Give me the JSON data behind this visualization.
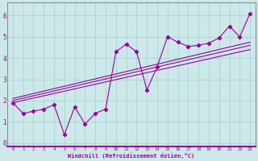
{
  "title": "",
  "xlabel": "Windchill (Refroidissement éolien,°C)",
  "ylabel": "",
  "xlim": [
    -0.5,
    23.5
  ],
  "ylim": [
    -0.15,
    6.6
  ],
  "xticks": [
    0,
    1,
    2,
    3,
    4,
    5,
    6,
    7,
    8,
    9,
    10,
    11,
    12,
    13,
    14,
    15,
    16,
    17,
    18,
    19,
    20,
    21,
    22,
    23
  ],
  "yticks": [
    0,
    1,
    2,
    3,
    4,
    5,
    6
  ],
  "scatter_x": [
    0,
    1,
    2,
    3,
    4,
    5,
    6,
    7,
    8,
    9,
    10,
    11,
    12,
    13,
    14,
    15,
    16,
    17,
    18,
    19,
    20,
    21,
    22,
    23
  ],
  "scatter_y": [
    1.9,
    1.4,
    1.5,
    1.6,
    1.8,
    0.4,
    1.7,
    0.9,
    1.4,
    1.6,
    4.3,
    4.65,
    4.3,
    2.5,
    3.6,
    5.0,
    4.75,
    4.55,
    4.6,
    4.7,
    4.95,
    5.5,
    5.0,
    6.1
  ],
  "line1_x": [
    0,
    23
  ],
  "line1_y": [
    1.9,
    4.4
  ],
  "line2_x": [
    0,
    23
  ],
  "line2_y": [
    2.0,
    4.6
  ],
  "line3_x": [
    0,
    23
  ],
  "line3_y": [
    2.1,
    4.75
  ],
  "color": "#990099",
  "bg_color": "#cce8e8",
  "grid_color": "#aad4d4",
  "marker": "D",
  "markersize": 2.2,
  "linewidth": 0.8,
  "xlabel_fontsize": 5.0,
  "tick_fontsize_x": 4.0,
  "tick_fontsize_y": 5.5
}
